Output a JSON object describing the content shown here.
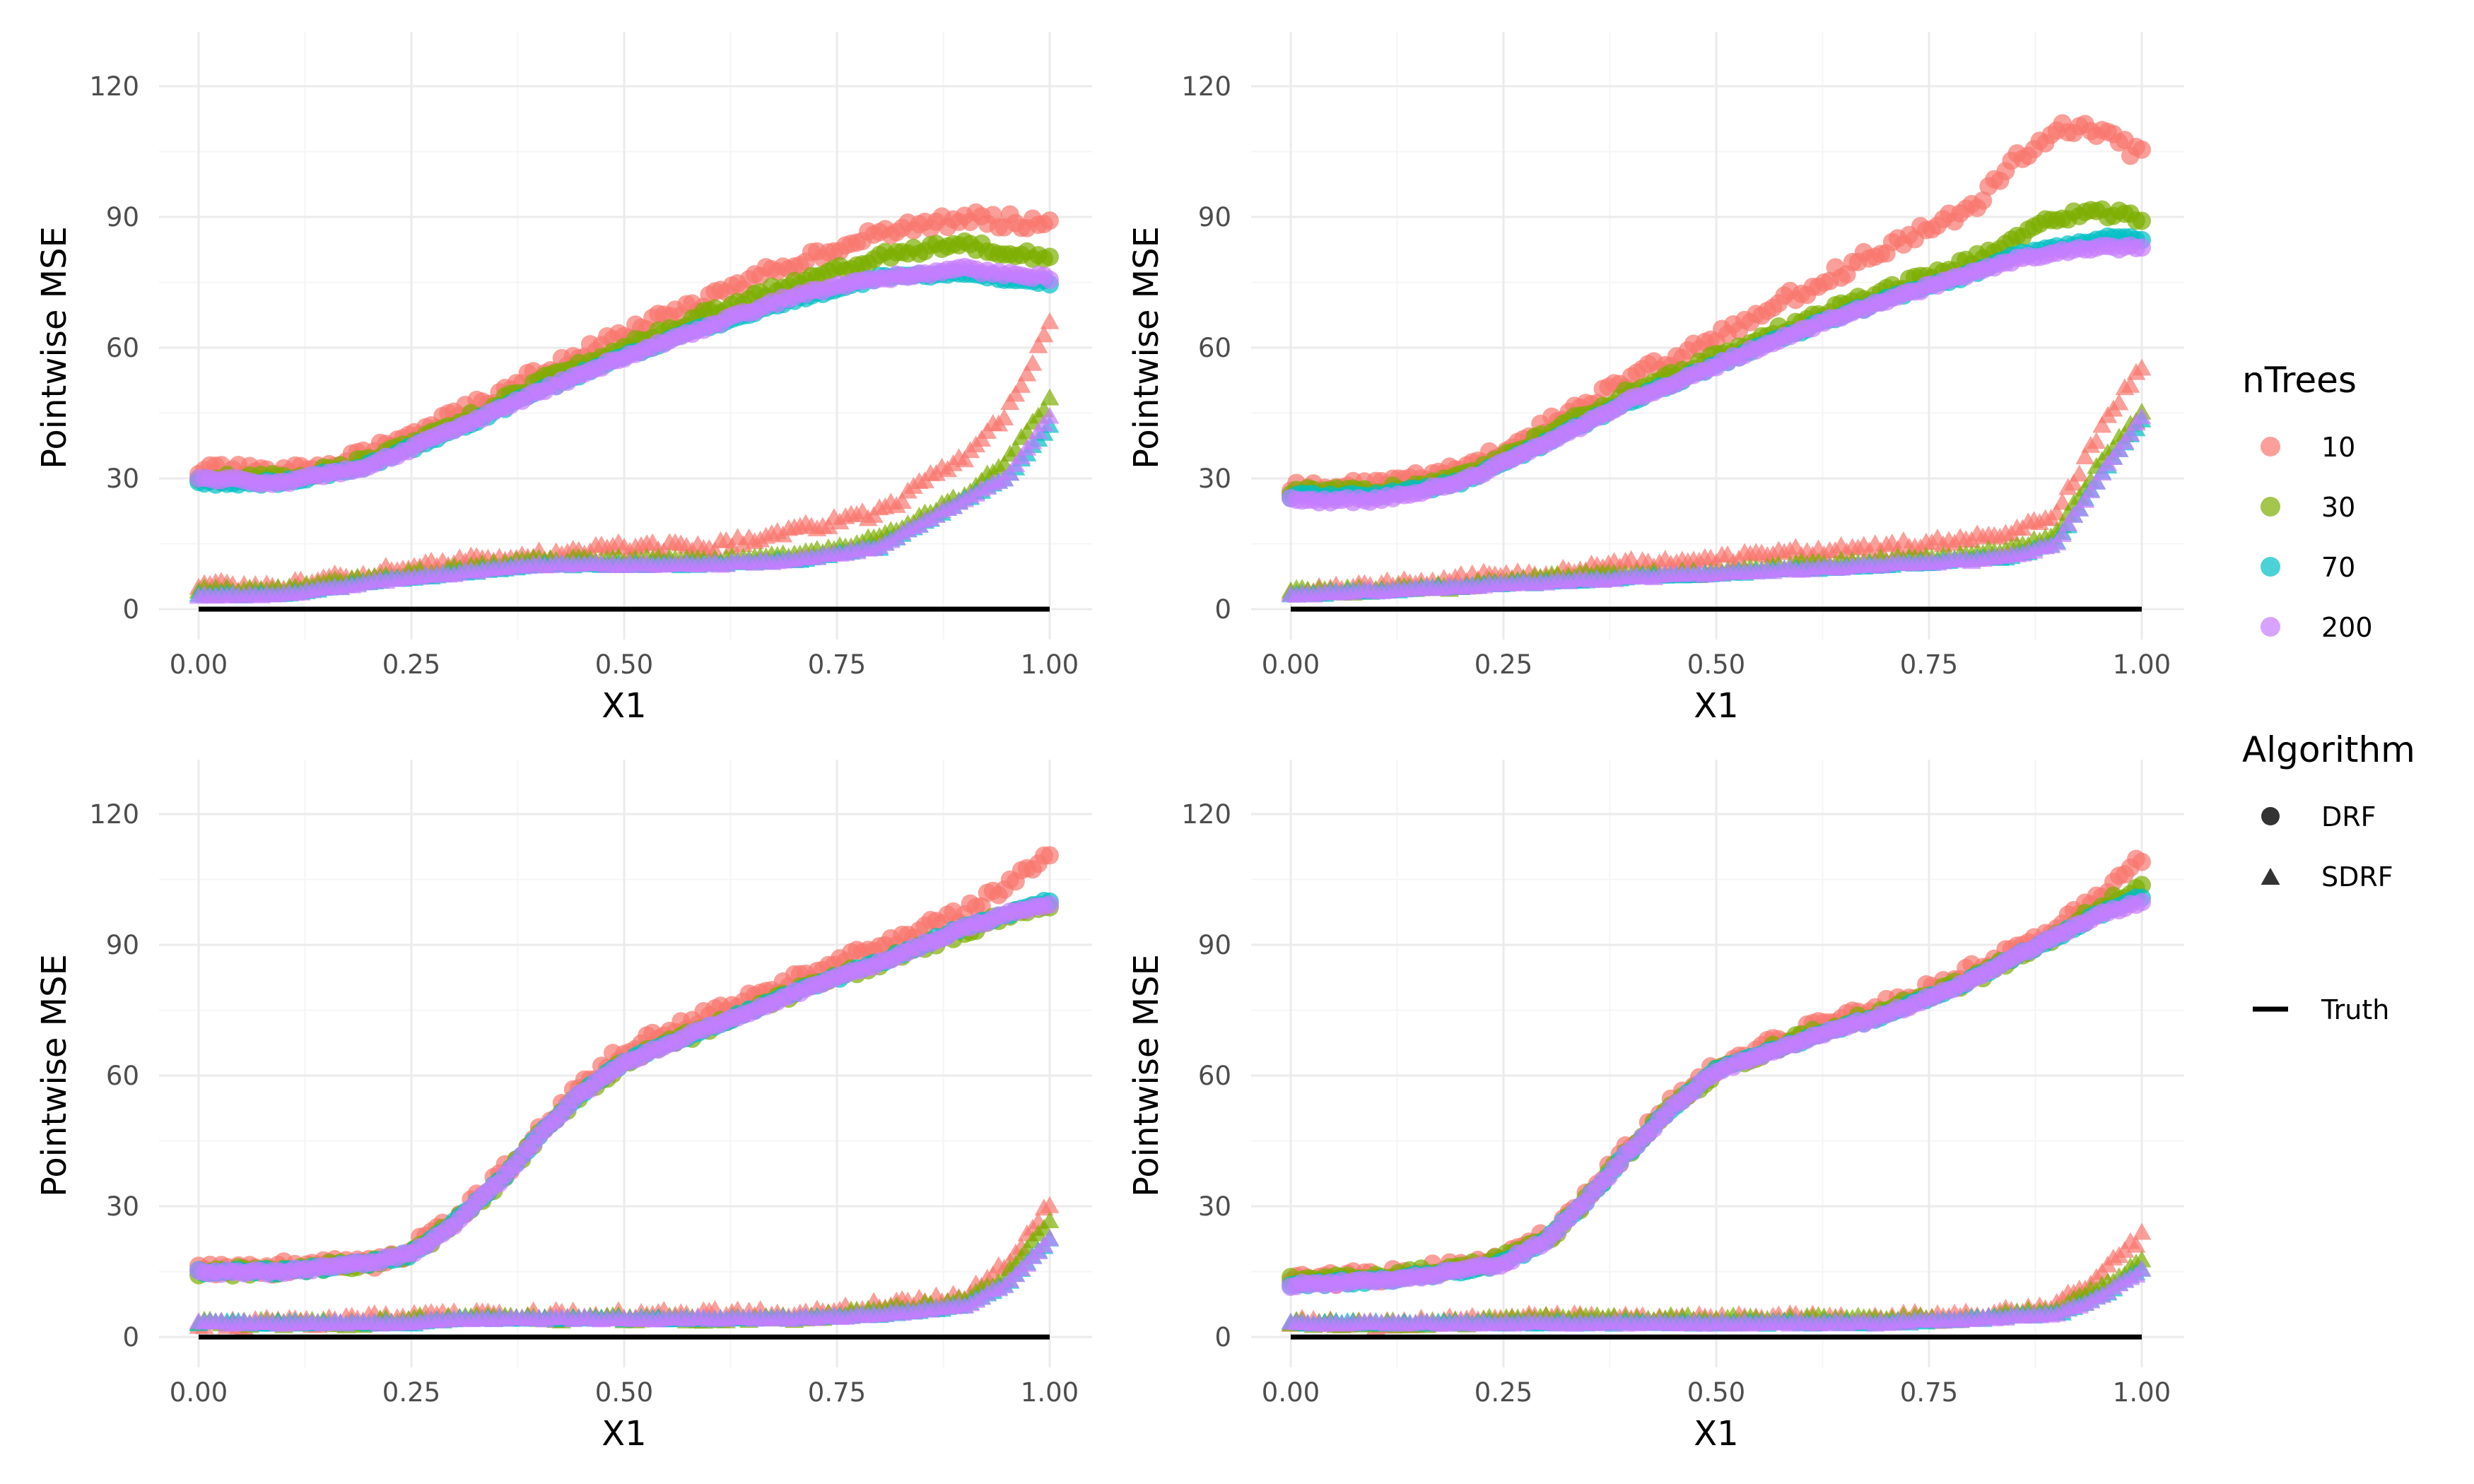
{
  "chart_data": [
    {
      "type": "scatter",
      "panel": "top-left",
      "xlabel": "X1",
      "ylabel": "Pointwise MSE",
      "xlim": [
        0,
        1
      ],
      "ylim": [
        0,
        120
      ],
      "x_ticks": [
        "0.00",
        "0.25",
        "0.50",
        "0.75",
        "1.00"
      ],
      "y_ticks": [
        "0",
        "30",
        "60",
        "90",
        "120"
      ],
      "x": [
        0.0,
        0.1,
        0.2,
        0.3,
        0.4,
        0.5,
        0.6,
        0.7,
        0.8,
        0.9,
        0.95,
        1.0
      ],
      "series": [
        {
          "name": "10",
          "algorithm": "DRF",
          "values": [
            32,
            31,
            36,
            44,
            54,
            63,
            71,
            80,
            86,
            90,
            89,
            89
          ]
        },
        {
          "name": "30",
          "algorithm": "DRF",
          "values": [
            30,
            30,
            34,
            42,
            52,
            60,
            68,
            75,
            81,
            84,
            82,
            81
          ]
        },
        {
          "name": "70",
          "algorithm": "DRF",
          "values": [
            29,
            29,
            33,
            41,
            50,
            58,
            65,
            71,
            76,
            77,
            76,
            75
          ]
        },
        {
          "name": "200",
          "algorithm": "DRF",
          "values": [
            30,
            29,
            33,
            41,
            50,
            58,
            65,
            72,
            76,
            78,
            77,
            76
          ]
        },
        {
          "name": "10",
          "algorithm": "SDRF",
          "values": [
            5,
            5,
            8,
            11,
            12,
            14,
            14,
            18,
            22,
            35,
            45,
            65
          ]
        },
        {
          "name": "30",
          "algorithm": "SDRF",
          "values": [
            4,
            4,
            7,
            9,
            11,
            11,
            11,
            12,
            16,
            26,
            34,
            48
          ]
        },
        {
          "name": "70",
          "algorithm": "SDRF",
          "values": [
            3,
            3,
            6,
            8,
            10,
            10,
            10,
            11,
            14,
            25,
            30,
            42
          ]
        },
        {
          "name": "200",
          "algorithm": "SDRF",
          "values": [
            3,
            3,
            6,
            8,
            10,
            10,
            10,
            11,
            14,
            25,
            30,
            44
          ]
        },
        {
          "name": "Truth",
          "values": [
            0,
            0,
            0,
            0,
            0,
            0,
            0,
            0,
            0,
            0,
            0,
            0
          ]
        }
      ]
    },
    {
      "type": "scatter",
      "panel": "top-right",
      "xlabel": "X1",
      "ylabel": "Pointwise MSE",
      "xlim": [
        0,
        1
      ],
      "ylim": [
        0,
        120
      ],
      "x_ticks": [
        "0.00",
        "0.25",
        "0.50",
        "0.75",
        "1.00"
      ],
      "y_ticks": [
        "0",
        "30",
        "60",
        "90",
        "120"
      ],
      "x": [
        0.0,
        0.1,
        0.2,
        0.3,
        0.4,
        0.5,
        0.6,
        0.7,
        0.8,
        0.85,
        0.9,
        0.95,
        1.0
      ],
      "series": [
        {
          "name": "10",
          "algorithm": "DRF",
          "values": [
            28,
            28,
            32,
            42,
            53,
            62,
            73,
            83,
            92,
            103,
            110,
            110,
            104
          ]
        },
        {
          "name": "30",
          "algorithm": "DRF",
          "values": [
            27,
            27,
            30,
            40,
            50,
            58,
            66,
            73,
            80,
            85,
            90,
            91,
            90
          ]
        },
        {
          "name": "70",
          "algorithm": "DRF",
          "values": [
            26,
            26,
            29,
            38,
            48,
            56,
            64,
            71,
            77,
            81,
            83,
            85,
            85
          ]
        },
        {
          "name": "200",
          "algorithm": "DRF",
          "values": [
            25,
            25,
            29,
            38,
            48,
            56,
            64,
            71,
            77,
            80,
            82,
            83,
            83
          ]
        },
        {
          "name": "10",
          "algorithm": "SDRF",
          "values": [
            4,
            5,
            7,
            8,
            10,
            11,
            13,
            14,
            16,
            18,
            22,
            40,
            56
          ]
        },
        {
          "name": "30",
          "algorithm": "SDRF",
          "values": [
            4,
            4,
            5,
            7,
            8,
            8,
            10,
            11,
            12,
            14,
            17,
            33,
            45
          ]
        },
        {
          "name": "70",
          "algorithm": "SDRF",
          "values": [
            3,
            4,
            5,
            6,
            7,
            8,
            9,
            10,
            11,
            12,
            15,
            30,
            43
          ]
        },
        {
          "name": "200",
          "algorithm": "SDRF",
          "values": [
            3,
            4,
            5,
            6,
            7,
            8,
            9,
            10,
            11,
            12,
            15,
            30,
            44
          ]
        },
        {
          "name": "Truth",
          "values": [
            0,
            0,
            0,
            0,
            0,
            0,
            0,
            0,
            0,
            0,
            0,
            0,
            0
          ]
        }
      ]
    },
    {
      "type": "scatter",
      "panel": "bottom-left",
      "xlabel": "X1",
      "ylabel": "Pointwise MSE",
      "xlim": [
        0,
        1
      ],
      "ylim": [
        0,
        120
      ],
      "x_ticks": [
        "0.00",
        "0.25",
        "0.50",
        "0.75",
        "1.00"
      ],
      "y_ticks": [
        "0",
        "30",
        "60",
        "90",
        "120"
      ],
      "x": [
        0.0,
        0.1,
        0.2,
        0.25,
        0.3,
        0.35,
        0.4,
        0.45,
        0.5,
        0.6,
        0.7,
        0.8,
        0.9,
        0.95,
        1.0
      ],
      "series": [
        {
          "name": "10",
          "algorithm": "DRF",
          "values": [
            15,
            16,
            17,
            20,
            27,
            36,
            47,
            58,
            66,
            74,
            82,
            90,
            97,
            104,
            112
          ]
        },
        {
          "name": "30",
          "algorithm": "DRF",
          "values": [
            15,
            15,
            17,
            19,
            26,
            35,
            46,
            56,
            63,
            71,
            79,
            86,
            93,
            97,
            99
          ]
        },
        {
          "name": "70",
          "algorithm": "DRF",
          "values": [
            15,
            15,
            17,
            19,
            26,
            35,
            46,
            56,
            63,
            71,
            79,
            86,
            94,
            97,
            100
          ]
        },
        {
          "name": "200",
          "algorithm": "DRF",
          "values": [
            15,
            15,
            17,
            19,
            26,
            35,
            46,
            56,
            63,
            71,
            79,
            86,
            94,
            97,
            99
          ]
        },
        {
          "name": "10",
          "algorithm": "SDRF",
          "values": [
            3,
            3,
            4,
            4,
            5,
            5,
            5,
            5,
            5,
            5,
            5,
            7,
            9,
            17,
            30
          ]
        },
        {
          "name": "30",
          "algorithm": "SDRF",
          "values": [
            3,
            3,
            3,
            4,
            4,
            4,
            4,
            4,
            4,
            4,
            4,
            6,
            8,
            14,
            27
          ]
        },
        {
          "name": "70",
          "algorithm": "SDRF",
          "values": [
            3,
            3,
            3,
            3,
            4,
            4,
            4,
            4,
            4,
            4,
            4,
            5,
            7,
            12,
            22
          ]
        },
        {
          "name": "200",
          "algorithm": "SDRF",
          "values": [
            3,
            3,
            3,
            3,
            4,
            4,
            4,
            4,
            4,
            4,
            4,
            5,
            7,
            12,
            22
          ]
        },
        {
          "name": "Truth",
          "values": [
            0,
            0,
            0,
            0,
            0,
            0,
            0,
            0,
            0,
            0,
            0,
            0,
            0,
            0,
            0
          ]
        }
      ]
    },
    {
      "type": "scatter",
      "panel": "bottom-right",
      "xlabel": "X1",
      "ylabel": "Pointwise MSE",
      "xlim": [
        0,
        1
      ],
      "ylim": [
        0,
        120
      ],
      "x_ticks": [
        "0.00",
        "0.25",
        "0.50",
        "0.75",
        "1.00"
      ],
      "y_ticks": [
        "0",
        "30",
        "60",
        "90",
        "120"
      ],
      "x": [
        0.0,
        0.1,
        0.2,
        0.25,
        0.3,
        0.35,
        0.4,
        0.45,
        0.5,
        0.6,
        0.7,
        0.8,
        0.9,
        0.95,
        1.0
      ],
      "series": [
        {
          "name": "10",
          "algorithm": "DRF",
          "values": [
            13,
            14,
            16,
            18,
            23,
            33,
            44,
            54,
            62,
            70,
            76,
            84,
            94,
            102,
            110
          ]
        },
        {
          "name": "30",
          "algorithm": "DRF",
          "values": [
            13,
            14,
            16,
            18,
            22,
            32,
            43,
            53,
            61,
            69,
            75,
            82,
            92,
            99,
            103
          ]
        },
        {
          "name": "70",
          "algorithm": "DRF",
          "values": [
            12,
            13,
            15,
            17,
            22,
            32,
            43,
            53,
            61,
            68,
            74,
            82,
            92,
            97,
            101
          ]
        },
        {
          "name": "200",
          "algorithm": "DRF",
          "values": [
            12,
            13,
            15,
            17,
            22,
            32,
            43,
            53,
            61,
            68,
            74,
            82,
            92,
            97,
            100
          ]
        },
        {
          "name": "10",
          "algorithm": "SDRF",
          "values": [
            3,
            3,
            4,
            4,
            4,
            4,
            4,
            4,
            4,
            4,
            4,
            5,
            7,
            14,
            23
          ]
        },
        {
          "name": "30",
          "algorithm": "SDRF",
          "values": [
            3,
            3,
            3,
            4,
            4,
            4,
            4,
            4,
            4,
            4,
            4,
            4,
            6,
            11,
            17
          ]
        },
        {
          "name": "70",
          "algorithm": "SDRF",
          "values": [
            3,
            3,
            3,
            3,
            3,
            3,
            3,
            3,
            3,
            3,
            3,
            4,
            5,
            9,
            15
          ]
        },
        {
          "name": "200",
          "algorithm": "SDRF",
          "values": [
            3,
            3,
            3,
            3,
            3,
            3,
            3,
            3,
            3,
            3,
            3,
            4,
            5,
            9,
            15
          ]
        },
        {
          "name": "Truth",
          "values": [
            0,
            0,
            0,
            0,
            0,
            0,
            0,
            0,
            0,
            0,
            0,
            0,
            0,
            0,
            0
          ]
        }
      ]
    }
  ],
  "legend": {
    "ntrees_title": "nTrees",
    "ntrees_items": [
      {
        "label": "10",
        "color": "#F8766D"
      },
      {
        "label": "30",
        "color": "#7CAE00"
      },
      {
        "label": "70",
        "color": "#00BFC4"
      },
      {
        "label": "200",
        "color": "#C77CFF"
      }
    ],
    "algorithm_title": "Algorithm",
    "algorithm_items": [
      {
        "label": "DRF",
        "shape": "circle"
      },
      {
        "label": "SDRF",
        "shape": "triangle"
      }
    ],
    "truth_label": "Truth",
    "truth_color": "#000000"
  },
  "colors": {
    "grid_major": "#ebebeb",
    "grid_minor": "#f5f5f5",
    "tick_text": "#4d4d4d"
  }
}
